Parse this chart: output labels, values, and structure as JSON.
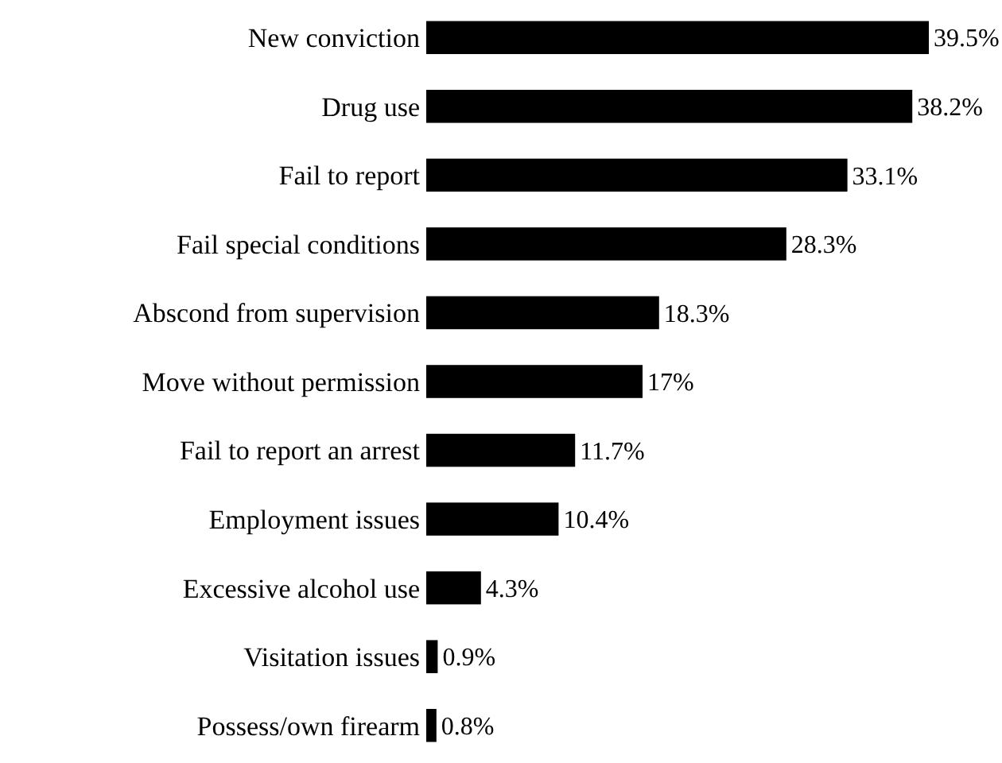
{
  "chart_data": {
    "type": "bar",
    "orientation": "horizontal",
    "categories": [
      "New conviction",
      "Drug use",
      "Fail to report",
      "Fail special conditions",
      "Abscond from supervision",
      "Move without permission",
      "Fail to report an arrest",
      "Employment issues",
      "Excessive alcohol use",
      "Visitation issues",
      "Possess/own firearm"
    ],
    "values": [
      39.5,
      38.2,
      33.1,
      28.3,
      18.3,
      17,
      11.7,
      10.4,
      4.3,
      0.9,
      0.8
    ],
    "value_labels": [
      "39.5%",
      "38.2%",
      "33.1%",
      "28.3%",
      "18.3%",
      "17%",
      "11.7%",
      "10.4%",
      "4.3%",
      "0.9%",
      "0.8%"
    ],
    "color": "#000000"
  }
}
